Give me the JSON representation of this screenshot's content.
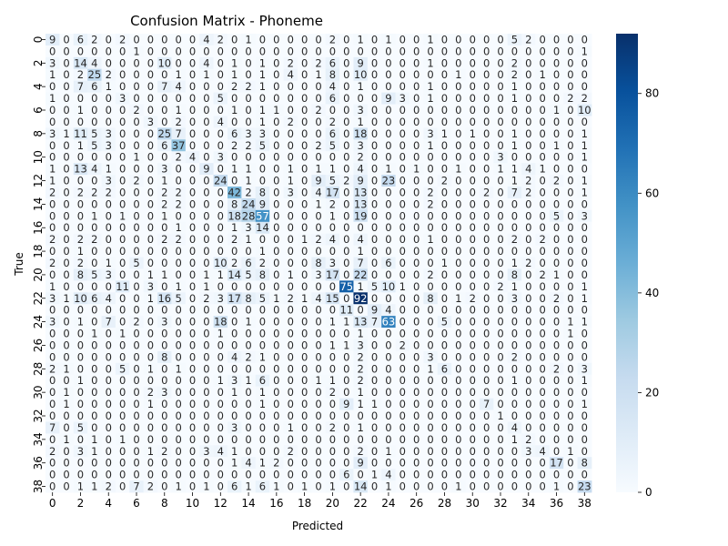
{
  "chart_data": {
    "type": "heatmap",
    "title": "Confusion Matrix - Phoneme",
    "xlabel": "Predicted",
    "ylabel": "True",
    "n_classes": 39,
    "x_tick_labels": [
      "0",
      "2",
      "4",
      "6",
      "8",
      "10",
      "12",
      "14",
      "16",
      "18",
      "20",
      "22",
      "24",
      "26",
      "28",
      "30",
      "32",
      "34",
      "36",
      "38"
    ],
    "y_tick_labels": [
      "0",
      "2",
      "4",
      "6",
      "8",
      "10",
      "12",
      "14",
      "16",
      "18",
      "20",
      "22",
      "24",
      "26",
      "28",
      "30",
      "32",
      "34",
      "36",
      "38"
    ],
    "colorbar": {
      "min": 0,
      "max": 92,
      "ticks": [
        0,
        20,
        40,
        60,
        80
      ],
      "colormap": "Blues"
    },
    "matrix": [
      [
        9,
        0,
        6,
        2,
        0,
        2,
        0,
        0,
        0,
        0,
        0,
        4,
        2,
        0,
        1,
        0,
        0,
        0,
        0,
        0,
        2,
        0,
        1,
        0,
        1,
        0,
        0,
        1,
        0,
        0,
        0,
        0,
        0,
        5,
        2,
        0,
        0,
        0,
        0
      ],
      [
        0,
        0,
        0,
        0,
        0,
        0,
        1,
        0,
        0,
        0,
        0,
        0,
        0,
        0,
        0,
        0,
        0,
        0,
        0,
        0,
        0,
        0,
        0,
        0,
        0,
        0,
        0,
        0,
        0,
        0,
        0,
        0,
        0,
        0,
        0,
        0,
        0,
        0,
        1
      ],
      [
        3,
        0,
        14,
        4,
        0,
        0,
        0,
        0,
        10,
        0,
        0,
        4,
        0,
        1,
        0,
        1,
        0,
        2,
        0,
        2,
        6,
        0,
        9,
        0,
        0,
        0,
        0,
        1,
        0,
        0,
        0,
        0,
        0,
        2,
        0,
        0,
        0,
        0,
        0
      ],
      [
        1,
        0,
        2,
        25,
        2,
        0,
        0,
        0,
        0,
        1,
        0,
        1,
        0,
        1,
        0,
        1,
        0,
        4,
        0,
        1,
        8,
        0,
        10,
        0,
        0,
        0,
        0,
        0,
        0,
        1,
        0,
        0,
        0,
        2,
        0,
        1,
        0,
        0,
        0
      ],
      [
        0,
        0,
        7,
        6,
        1,
        0,
        0,
        0,
        7,
        4,
        0,
        0,
        0,
        2,
        2,
        1,
        0,
        0,
        0,
        0,
        4,
        0,
        1,
        0,
        0,
        0,
        0,
        1,
        0,
        0,
        0,
        0,
        0,
        1,
        0,
        0,
        0,
        0,
        0
      ],
      [
        1,
        0,
        0,
        0,
        0,
        3,
        0,
        0,
        0,
        0,
        0,
        0,
        5,
        0,
        0,
        0,
        0,
        0,
        0,
        0,
        6,
        0,
        0,
        0,
        9,
        3,
        0,
        1,
        0,
        0,
        0,
        0,
        0,
        1,
        0,
        0,
        0,
        2,
        2
      ],
      [
        0,
        0,
        1,
        0,
        0,
        0,
        2,
        0,
        0,
        1,
        0,
        0,
        0,
        1,
        0,
        1,
        1,
        0,
        0,
        2,
        0,
        0,
        3,
        0,
        0,
        0,
        0,
        0,
        0,
        0,
        0,
        0,
        0,
        0,
        0,
        0,
        1,
        0,
        10
      ],
      [
        0,
        0,
        0,
        0,
        0,
        0,
        0,
        3,
        0,
        2,
        0,
        0,
        4,
        0,
        0,
        1,
        0,
        2,
        0,
        0,
        2,
        0,
        1,
        0,
        0,
        0,
        0,
        0,
        0,
        0,
        0,
        0,
        0,
        0,
        0,
        0,
        0,
        0,
        0
      ],
      [
        3,
        1,
        11,
        5,
        3,
        0,
        0,
        0,
        25,
        7,
        0,
        0,
        0,
        6,
        3,
        3,
        0,
        0,
        0,
        0,
        6,
        0,
        18,
        0,
        0,
        0,
        0,
        3,
        1,
        0,
        1,
        0,
        0,
        1,
        0,
        0,
        0,
        0,
        1
      ],
      [
        0,
        0,
        1,
        5,
        3,
        0,
        0,
        0,
        6,
        37,
        0,
        0,
        0,
        2,
        2,
        5,
        0,
        0,
        0,
        2,
        5,
        0,
        3,
        0,
        0,
        0,
        0,
        1,
        0,
        0,
        0,
        0,
        0,
        1,
        0,
        0,
        1,
        0,
        1
      ],
      [
        0,
        0,
        0,
        0,
        0,
        0,
        1,
        0,
        0,
        2,
        4,
        0,
        3,
        0,
        0,
        0,
        0,
        0,
        0,
        0,
        0,
        0,
        2,
        0,
        0,
        0,
        0,
        0,
        0,
        0,
        0,
        0,
        3,
        0,
        0,
        0,
        0,
        0,
        1
      ],
      [
        1,
        0,
        13,
        4,
        1,
        0,
        0,
        0,
        3,
        0,
        0,
        9,
        0,
        1,
        1,
        0,
        0,
        1,
        0,
        1,
        1,
        0,
        4,
        0,
        1,
        0,
        1,
        0,
        0,
        1,
        0,
        0,
        1,
        1,
        4,
        1,
        0,
        0,
        0
      ],
      [
        1,
        0,
        0,
        0,
        3,
        0,
        2,
        0,
        1,
        0,
        0,
        0,
        24,
        0,
        1,
        0,
        0,
        1,
        0,
        9,
        5,
        2,
        9,
        0,
        23,
        0,
        0,
        0,
        2,
        0,
        0,
        0,
        0,
        1,
        2,
        0,
        2,
        0,
        1
      ],
      [
        2,
        0,
        2,
        2,
        2,
        0,
        0,
        0,
        2,
        2,
        0,
        0,
        0,
        42,
        2,
        8,
        0,
        3,
        0,
        4,
        17,
        0,
        13,
        0,
        0,
        0,
        0,
        2,
        0,
        0,
        0,
        2,
        0,
        7,
        2,
        0,
        0,
        0,
        1
      ],
      [
        0,
        0,
        0,
        0,
        0,
        0,
        0,
        0,
        2,
        2,
        0,
        0,
        0,
        8,
        24,
        9,
        0,
        0,
        0,
        1,
        2,
        0,
        13,
        0,
        0,
        0,
        0,
        2,
        0,
        0,
        0,
        0,
        0,
        0,
        0,
        0,
        0,
        0,
        0
      ],
      [
        0,
        0,
        0,
        1,
        0,
        1,
        0,
        0,
        1,
        0,
        0,
        0,
        0,
        18,
        28,
        57,
        0,
        0,
        0,
        0,
        1,
        0,
        19,
        0,
        0,
        0,
        0,
        0,
        0,
        0,
        0,
        0,
        0,
        0,
        0,
        0,
        5,
        0,
        3
      ],
      [
        0,
        0,
        0,
        0,
        0,
        0,
        0,
        0,
        0,
        1,
        0,
        0,
        0,
        1,
        3,
        14,
        0,
        0,
        0,
        0,
        0,
        0,
        0,
        0,
        0,
        0,
        0,
        0,
        0,
        0,
        0,
        0,
        0,
        0,
        0,
        0,
        0,
        0,
        0
      ],
      [
        2,
        0,
        2,
        2,
        0,
        0,
        0,
        0,
        2,
        2,
        0,
        0,
        0,
        2,
        1,
        0,
        0,
        0,
        1,
        2,
        4,
        0,
        4,
        0,
        0,
        0,
        0,
        1,
        0,
        0,
        0,
        0,
        0,
        2,
        0,
        2,
        0,
        0,
        0
      ],
      [
        0,
        0,
        1,
        0,
        0,
        0,
        0,
        0,
        0,
        0,
        0,
        0,
        0,
        0,
        0,
        1,
        0,
        0,
        0,
        0,
        0,
        0,
        1,
        0,
        0,
        0,
        0,
        0,
        0,
        0,
        0,
        0,
        0,
        0,
        0,
        0,
        0,
        0,
        0
      ],
      [
        2,
        0,
        2,
        0,
        1,
        0,
        5,
        0,
        0,
        0,
        0,
        0,
        10,
        2,
        6,
        2,
        0,
        0,
        0,
        8,
        3,
        0,
        7,
        0,
        6,
        0,
        0,
        0,
        1,
        0,
        0,
        0,
        0,
        1,
        2,
        0,
        0,
        0,
        0
      ],
      [
        0,
        0,
        8,
        5,
        3,
        0,
        0,
        1,
        1,
        0,
        0,
        1,
        1,
        14,
        5,
        8,
        0,
        1,
        0,
        3,
        17,
        0,
        22,
        0,
        0,
        0,
        0,
        2,
        0,
        0,
        0,
        0,
        0,
        8,
        0,
        2,
        1,
        0,
        0
      ],
      [
        1,
        0,
        0,
        0,
        0,
        11,
        0,
        3,
        0,
        1,
        0,
        1,
        0,
        0,
        0,
        0,
        0,
        0,
        0,
        0,
        0,
        75,
        1,
        5,
        10,
        1,
        0,
        0,
        0,
        0,
        0,
        0,
        2,
        1,
        0,
        0,
        0,
        0,
        1
      ],
      [
        3,
        1,
        10,
        6,
        4,
        0,
        0,
        1,
        16,
        5,
        0,
        2,
        3,
        17,
        8,
        5,
        1,
        2,
        1,
        4,
        15,
        0,
        92,
        0,
        0,
        0,
        0,
        8,
        0,
        1,
        2,
        0,
        0,
        3,
        0,
        0,
        2,
        0,
        1
      ],
      [
        0,
        0,
        0,
        0,
        0,
        0,
        0,
        0,
        0,
        0,
        0,
        0,
        0,
        0,
        0,
        0,
        0,
        0,
        0,
        0,
        0,
        11,
        0,
        9,
        4,
        0,
        0,
        0,
        0,
        0,
        0,
        0,
        0,
        0,
        0,
        0,
        0,
        0,
        0
      ],
      [
        3,
        0,
        1,
        0,
        7,
        0,
        2,
        0,
        3,
        0,
        0,
        0,
        18,
        0,
        1,
        0,
        0,
        0,
        0,
        0,
        1,
        1,
        13,
        7,
        63,
        0,
        0,
        0,
        5,
        0,
        0,
        0,
        0,
        0,
        0,
        0,
        0,
        1,
        1
      ],
      [
        0,
        0,
        0,
        1,
        0,
        1,
        0,
        0,
        0,
        0,
        0,
        0,
        1,
        0,
        0,
        0,
        0,
        0,
        0,
        0,
        0,
        0,
        1,
        0,
        0,
        0,
        0,
        0,
        0,
        0,
        0,
        0,
        0,
        0,
        0,
        0,
        0,
        1,
        0
      ],
      [
        0,
        0,
        0,
        0,
        0,
        0,
        0,
        0,
        0,
        0,
        0,
        0,
        0,
        0,
        0,
        0,
        0,
        0,
        0,
        0,
        1,
        1,
        3,
        0,
        0,
        2,
        0,
        0,
        0,
        0,
        0,
        0,
        0,
        0,
        0,
        0,
        0,
        0,
        0
      ],
      [
        0,
        0,
        0,
        0,
        0,
        0,
        0,
        0,
        8,
        0,
        0,
        0,
        0,
        4,
        2,
        1,
        0,
        0,
        0,
        0,
        0,
        0,
        2,
        0,
        0,
        0,
        0,
        3,
        0,
        0,
        0,
        0,
        0,
        2,
        0,
        0,
        0,
        0,
        0
      ],
      [
        2,
        1,
        0,
        0,
        0,
        5,
        0,
        1,
        0,
        1,
        0,
        0,
        0,
        0,
        0,
        0,
        0,
        0,
        0,
        0,
        0,
        0,
        2,
        0,
        0,
        0,
        0,
        1,
        6,
        0,
        0,
        0,
        0,
        0,
        0,
        0,
        2,
        0,
        3
      ],
      [
        0,
        0,
        1,
        0,
        0,
        0,
        0,
        0,
        0,
        0,
        0,
        0,
        1,
        3,
        1,
        6,
        0,
        0,
        0,
        1,
        1,
        0,
        2,
        0,
        0,
        0,
        0,
        0,
        0,
        0,
        0,
        0,
        0,
        1,
        0,
        0,
        0,
        0,
        1
      ],
      [
        0,
        1,
        0,
        0,
        0,
        0,
        0,
        2,
        3,
        0,
        0,
        0,
        0,
        1,
        0,
        1,
        0,
        0,
        0,
        0,
        2,
        0,
        1,
        0,
        0,
        0,
        0,
        0,
        0,
        0,
        0,
        0,
        0,
        0,
        0,
        0,
        0,
        0,
        0
      ],
      [
        0,
        1,
        0,
        0,
        0,
        0,
        0,
        1,
        0,
        0,
        0,
        0,
        0,
        0,
        0,
        1,
        0,
        0,
        0,
        0,
        0,
        9,
        1,
        1,
        0,
        0,
        0,
        0,
        0,
        0,
        0,
        7,
        0,
        0,
        0,
        0,
        0,
        0,
        1
      ],
      [
        0,
        0,
        0,
        0,
        0,
        0,
        0,
        0,
        0,
        0,
        0,
        0,
        0,
        0,
        0,
        0,
        0,
        0,
        0,
        0,
        0,
        0,
        0,
        0,
        0,
        0,
        0,
        0,
        0,
        0,
        0,
        0,
        1,
        0,
        0,
        0,
        0,
        0,
        0
      ],
      [
        7,
        0,
        5,
        0,
        0,
        0,
        0,
        0,
        0,
        0,
        0,
        0,
        0,
        3,
        0,
        0,
        0,
        1,
        0,
        0,
        2,
        0,
        1,
        0,
        0,
        0,
        0,
        0,
        0,
        0,
        0,
        0,
        0,
        4,
        0,
        0,
        0,
        0,
        0
      ],
      [
        0,
        1,
        0,
        1,
        0,
        1,
        0,
        0,
        0,
        0,
        0,
        0,
        0,
        0,
        0,
        0,
        0,
        0,
        0,
        0,
        0,
        0,
        0,
        0,
        0,
        0,
        0,
        0,
        0,
        0,
        0,
        0,
        0,
        1,
        2,
        0,
        0,
        0,
        0
      ],
      [
        2,
        0,
        3,
        1,
        0,
        0,
        0,
        1,
        2,
        0,
        0,
        3,
        4,
        1,
        0,
        0,
        0,
        2,
        0,
        0,
        0,
        0,
        2,
        0,
        1,
        0,
        0,
        0,
        0,
        0,
        0,
        0,
        0,
        0,
        3,
        4,
        0,
        1,
        0
      ],
      [
        0,
        0,
        0,
        0,
        0,
        0,
        0,
        0,
        0,
        0,
        0,
        0,
        0,
        1,
        4,
        1,
        2,
        0,
        0,
        0,
        0,
        0,
        9,
        0,
        0,
        0,
        0,
        0,
        0,
        0,
        0,
        0,
        0,
        0,
        0,
        0,
        17,
        0,
        8
      ],
      [
        0,
        0,
        0,
        0,
        0,
        0,
        0,
        0,
        0,
        0,
        0,
        0,
        0,
        0,
        0,
        0,
        0,
        0,
        0,
        0,
        0,
        6,
        0,
        1,
        4,
        0,
        0,
        0,
        0,
        0,
        0,
        0,
        0,
        0,
        0,
        0,
        0,
        0,
        0
      ],
      [
        0,
        0,
        1,
        1,
        2,
        0,
        7,
        2,
        0,
        1,
        0,
        1,
        0,
        6,
        1,
        6,
        1,
        0,
        1,
        0,
        1,
        0,
        14,
        0,
        1,
        0,
        0,
        0,
        0,
        1,
        0,
        0,
        0,
        0,
        0,
        0,
        1,
        0,
        23
      ]
    ]
  }
}
